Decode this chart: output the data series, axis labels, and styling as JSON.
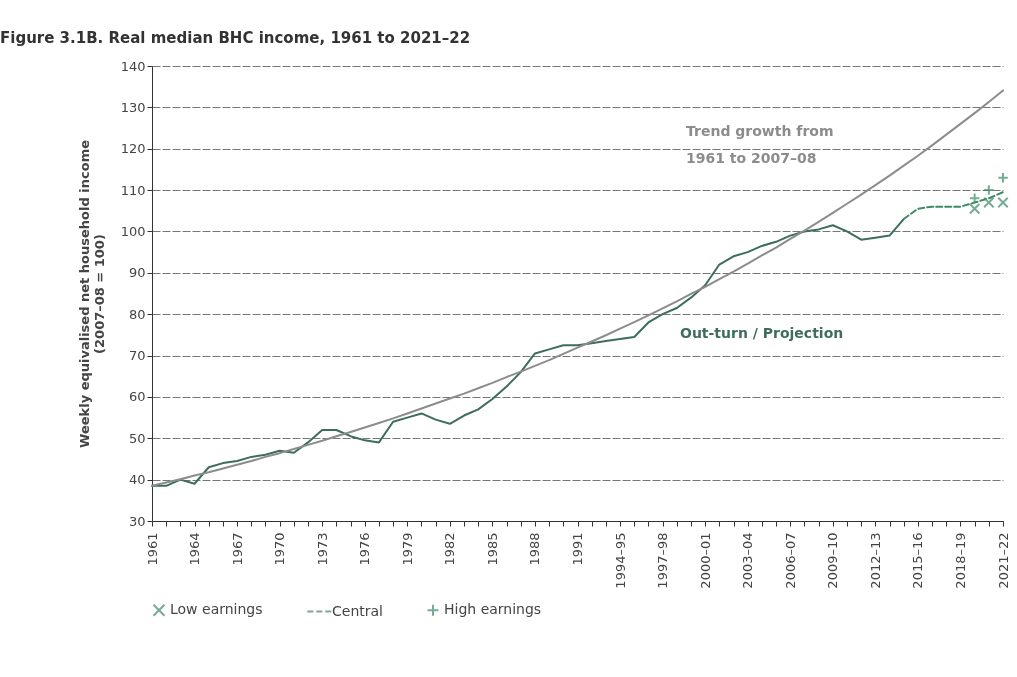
{
  "chart_data": {
    "type": "line",
    "title": "Figure 3.1B. Real median BHC income, 1961 to 2021–22",
    "ylabel": "Weekly equivalised net household  income\n(2007–08 = 100)",
    "categories": [
      "1961",
      null,
      null,
      "1964",
      null,
      null,
      "1967",
      null,
      null,
      "1970",
      null,
      null,
      "1973",
      null,
      null,
      "1976",
      null,
      null,
      "1979",
      null,
      null,
      "1982",
      null,
      null,
      "1985",
      null,
      null,
      "1988",
      null,
      null,
      "1991",
      null,
      null,
      "1994–95",
      null,
      null,
      "1997–98",
      null,
      null,
      "2000–01",
      null,
      null,
      "2003–04",
      null,
      null,
      "2006–07",
      null,
      null,
      "2009–10",
      null,
      null,
      "2012–13",
      null,
      null,
      "2015–16",
      null,
      null,
      "2018–19",
      null,
      null,
      "2021–22"
    ],
    "series": [
      {
        "color": "#3d6e5c",
        "line_style": "solid",
        "values": [
          38.5,
          38.5,
          40,
          39,
          43,
          44,
          44.5,
          45.5,
          46,
          47,
          46.5,
          49,
          52,
          52,
          50.5,
          49.5,
          49,
          54,
          55,
          56,
          54.5,
          53.5,
          55.5,
          57,
          59.5,
          62.5,
          66,
          70.5,
          71.5,
          72.5,
          72.5,
          73,
          73.5,
          74,
          74.5,
          78,
          80,
          81.5,
          84,
          87,
          92,
          94,
          95,
          96.5,
          97.5,
          99,
          100,
          100.5,
          101.5,
          100,
          98,
          98.5,
          99,
          103,
          null,
          null,
          null,
          null,
          null,
          null,
          null
        ]
      },
      {
        "color": "#8c8c8c",
        "line_style": "solid",
        "values": [
          38.5,
          39.3,
          40.1,
          41,
          41.8,
          42.7,
          43.6,
          44.5,
          45.5,
          46.4,
          47.4,
          48.4,
          49.4,
          50.5,
          51.5,
          52.6,
          53.7,
          54.8,
          56,
          57.2,
          58.4,
          59.6,
          60.8,
          62.1,
          63.4,
          64.8,
          66.1,
          67.5,
          68.9,
          70.4,
          71.9,
          73.4,
          74.9,
          76.5,
          78.1,
          79.7,
          81.4,
          83.1,
          84.9,
          86.6,
          88.5,
          90.3,
          92.2,
          94.2,
          96.1,
          98.2,
          100.2,
          102.3,
          104.5,
          106.7,
          108.9,
          111.2,
          113.5,
          115.9,
          118.3,
          120.8,
          123.4,
          126,
          128.6,
          131.3,
          134.1
        ]
      },
      {
        "type": "scatter",
        "name": "Low earnings",
        "color": "#3d8a64",
        "marker": "cross",
        "values": [
          null,
          null,
          null,
          null,
          null,
          null,
          null,
          null,
          null,
          null,
          null,
          null,
          null,
          null,
          null,
          null,
          null,
          null,
          null,
          null,
          null,
          null,
          null,
          null,
          null,
          null,
          null,
          null,
          null,
          null,
          null,
          null,
          null,
          null,
          null,
          null,
          null,
          null,
          null,
          null,
          null,
          null,
          null,
          null,
          null,
          null,
          null,
          null,
          null,
          null,
          null,
          null,
          null,
          null,
          null,
          null,
          null,
          null,
          105.5,
          107,
          107
        ]
      },
      {
        "type": "line",
        "name": "Central",
        "color": "#3d8a64",
        "line_style": "dashed",
        "values": [
          null,
          null,
          null,
          null,
          null,
          null,
          null,
          null,
          null,
          null,
          null,
          null,
          null,
          null,
          null,
          null,
          null,
          null,
          null,
          null,
          null,
          null,
          null,
          null,
          null,
          null,
          null,
          null,
          null,
          null,
          null,
          null,
          null,
          null,
          null,
          null,
          null,
          null,
          null,
          null,
          null,
          null,
          null,
          null,
          null,
          null,
          null,
          null,
          null,
          null,
          null,
          null,
          null,
          103,
          105.5,
          106,
          106,
          106,
          107,
          108,
          109.5
        ]
      },
      {
        "type": "scatter",
        "name": "High earnings",
        "color": "#3d8a64",
        "marker": "plus",
        "values": [
          null,
          null,
          null,
          null,
          null,
          null,
          null,
          null,
          null,
          null,
          null,
          null,
          null,
          null,
          null,
          null,
          null,
          null,
          null,
          null,
          null,
          null,
          null,
          null,
          null,
          null,
          null,
          null,
          null,
          null,
          null,
          null,
          null,
          null,
          null,
          null,
          null,
          null,
          null,
          null,
          null,
          null,
          null,
          null,
          null,
          null,
          null,
          null,
          null,
          null,
          null,
          null,
          null,
          null,
          null,
          null,
          null,
          null,
          108,
          110,
          113
        ]
      }
    ],
    "annotations": [
      "Trend growth from\n1961 to 2007–08",
      "Out-turn / Projection"
    ],
    "ylim": [
      30,
      140
    ],
    "yticks": [
      30,
      40,
      50,
      60,
      70,
      80,
      90,
      100,
      110,
      120,
      130,
      140
    ],
    "grid": "y",
    "legend": "bottom"
  }
}
